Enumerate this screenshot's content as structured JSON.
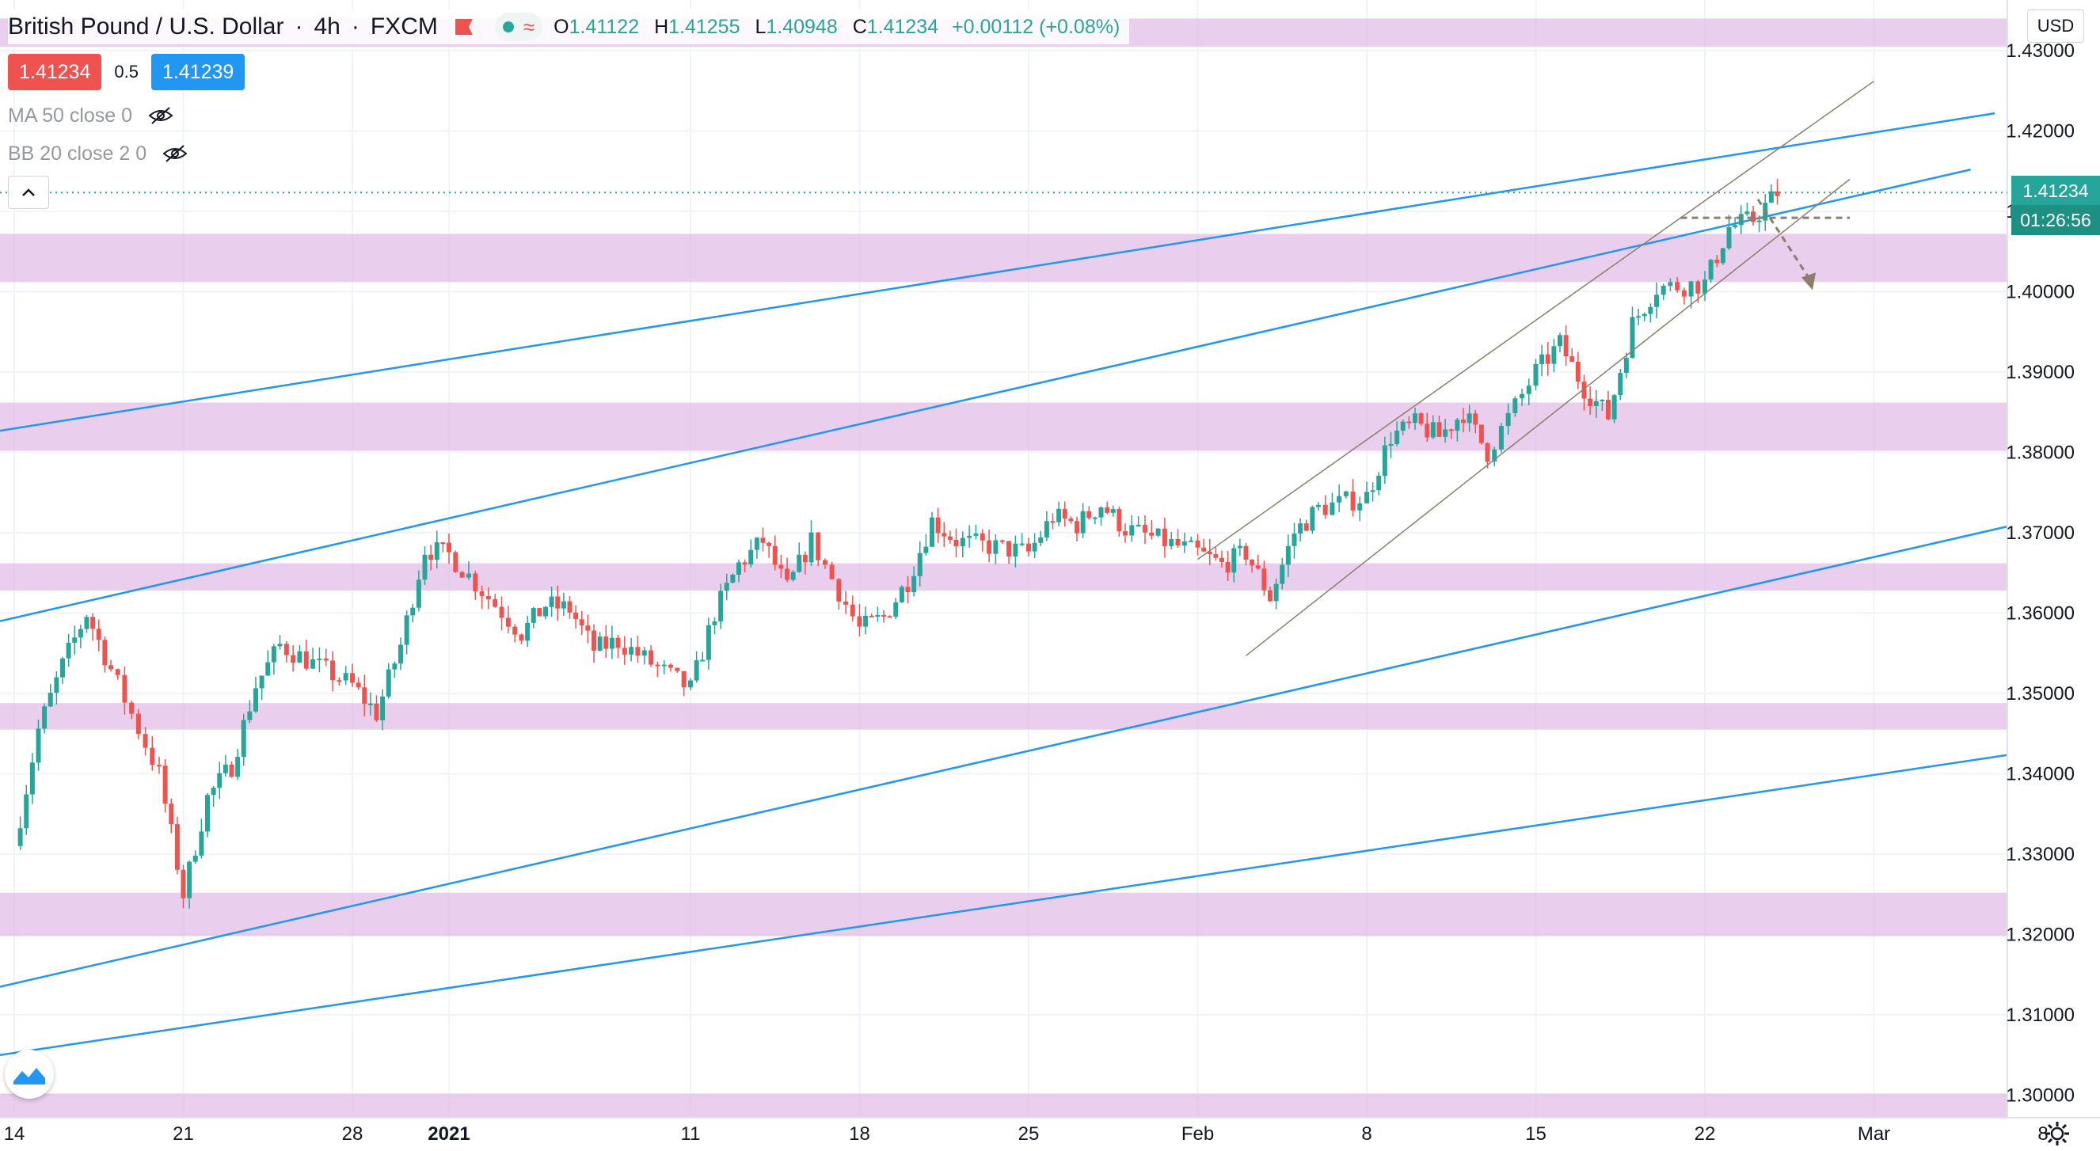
{
  "header": {
    "title": "British Pound / U.S. Dollar",
    "interval": "4h",
    "exchange": "FXCM",
    "ohlc": {
      "open": "1.41122",
      "high": "1.41255",
      "low": "1.40948",
      "close": "1.41234",
      "change": "+0.00112 (+0.08%)"
    },
    "status_icon": "market-open-dot",
    "wave_icon": "≈"
  },
  "trade": {
    "sell": "1.41234",
    "spread": "0.5",
    "buy": "1.41239"
  },
  "indicators": [
    {
      "label": "MA 50 close 0",
      "icon": "eye-hidden-icon"
    },
    {
      "label": "BB 20 close 2 0",
      "icon": "eye-hidden-icon"
    }
  ],
  "axis": {
    "currency": "USD"
  },
  "badges": {
    "price": "1.41234",
    "timer": "01:26:56"
  },
  "colors": {
    "up": "#26a69a",
    "down": "#ef5350",
    "trendline": "#2196f3",
    "zone": "#e1bee7",
    "channel": "#8d7e6a"
  },
  "chart_data": {
    "type": "candlestick",
    "title": "British Pound / U.S. Dollar",
    "interval": "4h",
    "ylim": [
      1.297,
      1.434
    ],
    "y_ticks": [
      "1.43000",
      "1.42000",
      "1.41000",
      "1.40000",
      "1.39000",
      "1.38000",
      "1.37000",
      "1.36000",
      "1.35000",
      "1.34000",
      "1.33000",
      "1.32000",
      "1.31000",
      "1.30000"
    ],
    "x_ticks": [
      {
        "label": "14",
        "date": "2020-12-14"
      },
      {
        "label": "21",
        "date": "2020-12-21"
      },
      {
        "label": "28",
        "date": "2020-12-28"
      },
      {
        "label": "2021",
        "date": "2021-01-01"
      },
      {
        "label": "11",
        "date": "2021-01-11"
      },
      {
        "label": "18",
        "date": "2021-01-18"
      },
      {
        "label": "25",
        "date": "2021-01-25"
      },
      {
        "label": "Feb",
        "date": "2021-02-01"
      },
      {
        "label": "8",
        "date": "2021-02-08"
      },
      {
        "label": "15",
        "date": "2021-02-15"
      },
      {
        "label": "22",
        "date": "2021-02-22"
      },
      {
        "label": "Mar",
        "date": "2021-03-01"
      },
      {
        "label": "8",
        "date": "2021-03-08"
      }
    ],
    "last_price": 1.41234,
    "resistance_zones": [
      [
        1.4305,
        1.434
      ],
      [
        1.4012,
        1.4072
      ],
      [
        1.3802,
        1.3862
      ],
      [
        1.3628,
        1.3662
      ],
      [
        1.3455,
        1.3488
      ],
      [
        1.3198,
        1.3252
      ],
      [
        1.2972,
        1.3002
      ]
    ],
    "key_level": 1.4092,
    "closes": [
      [
        "2020-12-14",
        1.331
      ],
      [
        "2020-12-15",
        1.3455
      ],
      [
        "2020-12-16",
        1.3535
      ],
      [
        "2020-12-17",
        1.36
      ],
      [
        "2020-12-18",
        1.353
      ],
      [
        "2020-12-20",
        1.34
      ],
      [
        "2020-12-21",
        1.325
      ],
      [
        "2020-12-22",
        1.337
      ],
      [
        "2020-12-23",
        1.341
      ],
      [
        "2020-12-24",
        1.351
      ],
      [
        "2020-12-25",
        1.356
      ],
      [
        "2020-12-28",
        1.351
      ],
      [
        "2020-12-29",
        1.3475
      ],
      [
        "2020-12-30",
        1.356
      ],
      [
        "2020-12-31",
        1.368
      ],
      [
        "2021-01-01",
        1.3673
      ],
      [
        "2021-01-04",
        1.3575
      ],
      [
        "2021-01-05",
        1.361
      ],
      [
        "2021-01-06",
        1.3605
      ],
      [
        "2021-01-07",
        1.3555
      ],
      [
        "2021-01-08",
        1.3565
      ],
      [
        "2021-01-11",
        1.3505
      ],
      [
        "2021-01-12",
        1.36
      ],
      [
        "2021-01-13",
        1.366
      ],
      [
        "2021-01-14",
        1.369
      ],
      [
        "2021-01-15",
        1.363
      ],
      [
        "2021-01-16",
        1.369
      ],
      [
        "2021-01-18",
        1.358
      ],
      [
        "2021-01-19",
        1.3595
      ],
      [
        "2021-01-20",
        1.364
      ],
      [
        "2021-01-21",
        1.3715
      ],
      [
        "2021-01-22",
        1.369
      ],
      [
        "2021-01-25",
        1.3675
      ],
      [
        "2021-01-26",
        1.372
      ],
      [
        "2021-01-27",
        1.371
      ],
      [
        "2021-01-28",
        1.3735
      ],
      [
        "2021-01-29",
        1.3705
      ],
      [
        "2021-02-01",
        1.3675
      ],
      [
        "2021-02-02",
        1.366
      ],
      [
        "2021-02-03",
        1.3675
      ],
      [
        "2021-02-04",
        1.362
      ],
      [
        "2021-02-05",
        1.37
      ],
      [
        "2021-02-06",
        1.373
      ],
      [
        "2021-02-08",
        1.3745
      ],
      [
        "2021-02-09",
        1.382
      ],
      [
        "2021-02-10",
        1.3835
      ],
      [
        "2021-02-11",
        1.382
      ],
      [
        "2021-02-12",
        1.385
      ],
      [
        "2021-02-13",
        1.38
      ],
      [
        "2021-02-15",
        1.39
      ],
      [
        "2021-02-16",
        1.3935
      ],
      [
        "2021-02-17",
        1.388
      ],
      [
        "2021-02-18",
        1.3845
      ],
      [
        "2021-02-19",
        1.396
      ],
      [
        "2021-02-20",
        1.4005
      ],
      [
        "2021-02-22",
        1.401
      ],
      [
        "2021-02-23",
        1.408
      ],
      [
        "2021-02-24",
        1.409
      ],
      [
        "2021-02-25",
        1.41234
      ]
    ]
  }
}
